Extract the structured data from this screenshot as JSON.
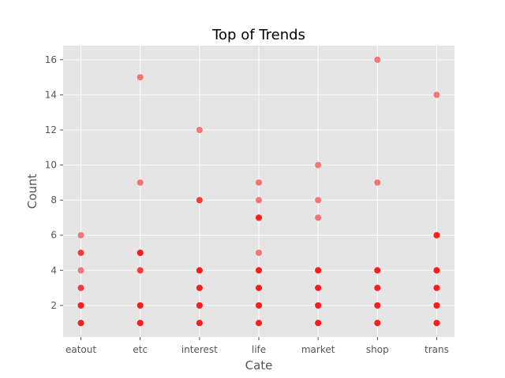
{
  "chart_data": {
    "type": "scatter",
    "title": "Top of Trends",
    "xlabel": "Cate",
    "ylabel": "Count",
    "categories": [
      "eatout",
      "etc",
      "interest",
      "life",
      "market",
      "shop",
      "trans"
    ],
    "yticks": [
      2,
      4,
      6,
      8,
      10,
      12,
      14,
      16
    ],
    "ylim": [
      0.2,
      16.8
    ],
    "grid": true,
    "point_color": "#ff0000",
    "point_alpha": 0.5,
    "background": "#e5e5e5",
    "series": [
      {
        "points": [
          {
            "x": "eatout",
            "y": 1
          },
          {
            "x": "eatout",
            "y": 1
          },
          {
            "x": "eatout",
            "y": 1
          },
          {
            "x": "eatout",
            "y": 2
          },
          {
            "x": "eatout",
            "y": 2
          },
          {
            "x": "eatout",
            "y": 2
          },
          {
            "x": "eatout",
            "y": 3
          },
          {
            "x": "eatout",
            "y": 3
          },
          {
            "x": "eatout",
            "y": 4
          },
          {
            "x": "eatout",
            "y": 5
          },
          {
            "x": "eatout",
            "y": 5
          },
          {
            "x": "eatout",
            "y": 6
          },
          {
            "x": "etc",
            "y": 1
          },
          {
            "x": "etc",
            "y": 1
          },
          {
            "x": "etc",
            "y": 1
          },
          {
            "x": "etc",
            "y": 2
          },
          {
            "x": "etc",
            "y": 2
          },
          {
            "x": "etc",
            "y": 2
          },
          {
            "x": "etc",
            "y": 4
          },
          {
            "x": "etc",
            "y": 4
          },
          {
            "x": "etc",
            "y": 5
          },
          {
            "x": "etc",
            "y": 5
          },
          {
            "x": "etc",
            "y": 5
          },
          {
            "x": "etc",
            "y": 9
          },
          {
            "x": "etc",
            "y": 15
          },
          {
            "x": "interest",
            "y": 1
          },
          {
            "x": "interest",
            "y": 1
          },
          {
            "x": "interest",
            "y": 1
          },
          {
            "x": "interest",
            "y": 2
          },
          {
            "x": "interest",
            "y": 2
          },
          {
            "x": "interest",
            "y": 2
          },
          {
            "x": "interest",
            "y": 3
          },
          {
            "x": "interest",
            "y": 3
          },
          {
            "x": "interest",
            "y": 3
          },
          {
            "x": "interest",
            "y": 4
          },
          {
            "x": "interest",
            "y": 4
          },
          {
            "x": "interest",
            "y": 4
          },
          {
            "x": "interest",
            "y": 8
          },
          {
            "x": "interest",
            "y": 8
          },
          {
            "x": "interest",
            "y": 12
          },
          {
            "x": "life",
            "y": 1
          },
          {
            "x": "life",
            "y": 1
          },
          {
            "x": "life",
            "y": 1
          },
          {
            "x": "life",
            "y": 2
          },
          {
            "x": "life",
            "y": 2
          },
          {
            "x": "life",
            "y": 2
          },
          {
            "x": "life",
            "y": 3
          },
          {
            "x": "life",
            "y": 3
          },
          {
            "x": "life",
            "y": 3
          },
          {
            "x": "life",
            "y": 4
          },
          {
            "x": "life",
            "y": 4
          },
          {
            "x": "life",
            "y": 4
          },
          {
            "x": "life",
            "y": 5
          },
          {
            "x": "life",
            "y": 7
          },
          {
            "x": "life",
            "y": 7
          },
          {
            "x": "life",
            "y": 7
          },
          {
            "x": "life",
            "y": 8
          },
          {
            "x": "life",
            "y": 9
          },
          {
            "x": "market",
            "y": 1
          },
          {
            "x": "market",
            "y": 1
          },
          {
            "x": "market",
            "y": 1
          },
          {
            "x": "market",
            "y": 2
          },
          {
            "x": "market",
            "y": 2
          },
          {
            "x": "market",
            "y": 2
          },
          {
            "x": "market",
            "y": 3
          },
          {
            "x": "market",
            "y": 3
          },
          {
            "x": "market",
            "y": 3
          },
          {
            "x": "market",
            "y": 4
          },
          {
            "x": "market",
            "y": 4
          },
          {
            "x": "market",
            "y": 4
          },
          {
            "x": "market",
            "y": 7
          },
          {
            "x": "market",
            "y": 8
          },
          {
            "x": "market",
            "y": 10
          },
          {
            "x": "shop",
            "y": 1
          },
          {
            "x": "shop",
            "y": 1
          },
          {
            "x": "shop",
            "y": 1
          },
          {
            "x": "shop",
            "y": 2
          },
          {
            "x": "shop",
            "y": 2
          },
          {
            "x": "shop",
            "y": 2
          },
          {
            "x": "shop",
            "y": 3
          },
          {
            "x": "shop",
            "y": 3
          },
          {
            "x": "shop",
            "y": 3
          },
          {
            "x": "shop",
            "y": 4
          },
          {
            "x": "shop",
            "y": 4
          },
          {
            "x": "shop",
            "y": 4
          },
          {
            "x": "shop",
            "y": 9
          },
          {
            "x": "shop",
            "y": 16
          },
          {
            "x": "trans",
            "y": 1
          },
          {
            "x": "trans",
            "y": 1
          },
          {
            "x": "trans",
            "y": 1
          },
          {
            "x": "trans",
            "y": 2
          },
          {
            "x": "trans",
            "y": 2
          },
          {
            "x": "trans",
            "y": 2
          },
          {
            "x": "trans",
            "y": 3
          },
          {
            "x": "trans",
            "y": 3
          },
          {
            "x": "trans",
            "y": 3
          },
          {
            "x": "trans",
            "y": 4
          },
          {
            "x": "trans",
            "y": 4
          },
          {
            "x": "trans",
            "y": 4
          },
          {
            "x": "trans",
            "y": 6
          },
          {
            "x": "trans",
            "y": 6
          },
          {
            "x": "trans",
            "y": 6
          },
          {
            "x": "trans",
            "y": 14
          }
        ]
      }
    ]
  }
}
